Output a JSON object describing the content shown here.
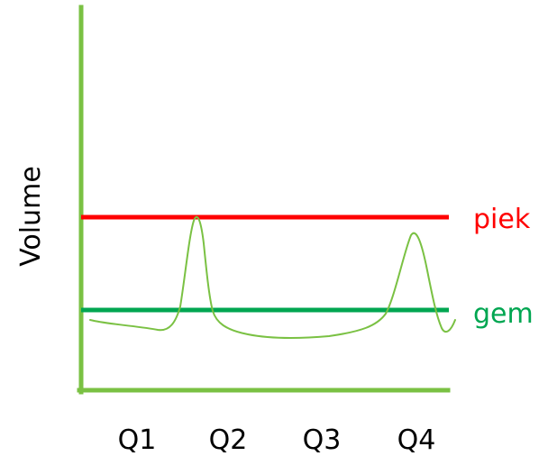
{
  "colors": {
    "axis": "#7ac143",
    "peak_line": "#ff0000",
    "average_line": "#00a651",
    "volume_curve": "#7ac143",
    "text": "#000000"
  },
  "diagram": {
    "y_axis_label": "Volume",
    "categories": [
      "Q1",
      "Q2",
      "Q3",
      "Q4"
    ],
    "peak_label": "piek",
    "average_label": "gem"
  }
}
